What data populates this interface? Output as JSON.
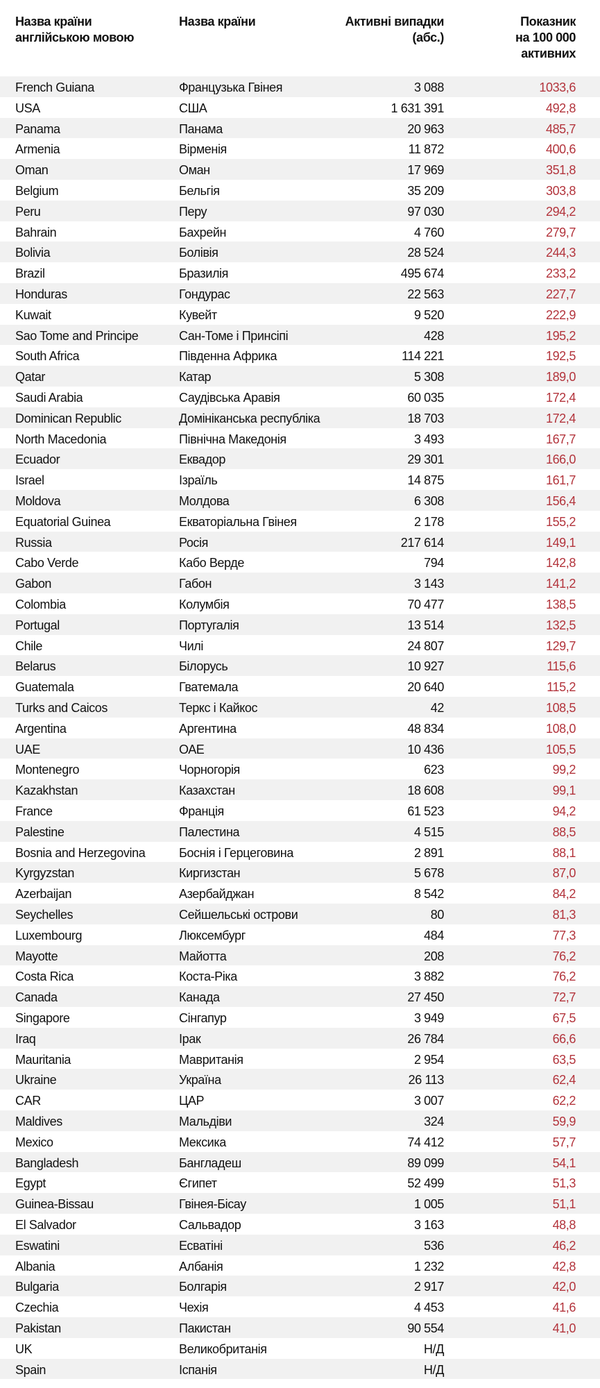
{
  "header": [
    [
      "Назва країни",
      "англійською мовою"
    ],
    [
      "Назва країни"
    ],
    [
      "Активні випадки",
      "(абс.)"
    ],
    [
      "Показник",
      "на 100 000",
      "активних"
    ]
  ],
  "table": {
    "rows": [
      [
        "French Guiana",
        "Французька Гвінея",
        "3 088",
        "1033,6"
      ],
      [
        "USA",
        "США",
        "1 631 391",
        "492,8"
      ],
      [
        "Panama",
        "Панама",
        "20 963",
        "485,7"
      ],
      [
        "Armenia",
        "Вірменія",
        "11 872",
        "400,6"
      ],
      [
        "Oman",
        "Оман",
        "17 969",
        "351,8"
      ],
      [
        "Belgium",
        "Бельгія",
        "35 209",
        "303,8"
      ],
      [
        "Peru",
        "Перу",
        "97 030",
        "294,2"
      ],
      [
        "Bahrain",
        "Бахрейн",
        "4 760",
        "279,7"
      ],
      [
        "Bolivia",
        "Болівія",
        "28 524",
        "244,3"
      ],
      [
        "Brazil",
        "Бразилія",
        "495 674",
        "233,2"
      ],
      [
        "Honduras",
        "Гондурас",
        "22 563",
        "227,7"
      ],
      [
        "Kuwait",
        "Кувейт",
        "9 520",
        "222,9"
      ],
      [
        "Sao Tome and Principe",
        "Сан-Томе і Принсіпі",
        "428",
        "195,2"
      ],
      [
        "South Africa",
        "Південна Африка",
        "114 221",
        "192,5"
      ],
      [
        "Qatar",
        "Катар",
        "5 308",
        "189,0"
      ],
      [
        "Saudi Arabia",
        "Саудівська Аравія",
        "60 035",
        "172,4"
      ],
      [
        "Dominican Republic",
        "Домініканська республіка",
        "18 703",
        "172,4"
      ],
      [
        "North Macedonia",
        "Північна Македонія",
        "3 493",
        "167,7"
      ],
      [
        "Ecuador",
        "Еквадор",
        "29 301",
        "166,0"
      ],
      [
        "Israel",
        "Ізраїль",
        "14 875",
        "161,7"
      ],
      [
        "Moldova",
        "Молдова",
        "6 308",
        "156,4"
      ],
      [
        "Equatorial Guinea",
        "Екваторіальна Гвінея",
        "2 178",
        "155,2"
      ],
      [
        "Russia",
        "Росія",
        "217 614",
        "149,1"
      ],
      [
        "Cabo Verde",
        "Кабо Верде",
        "794",
        "142,8"
      ],
      [
        "Gabon",
        "Габон",
        "3 143",
        "141,2"
      ],
      [
        "Colombia",
        "Колумбія",
        "70 477",
        "138,5"
      ],
      [
        "Portugal",
        "Португалія",
        "13 514",
        "132,5"
      ],
      [
        "Chile",
        "Чилі",
        "24 807",
        "129,7"
      ],
      [
        "Belarus",
        "Білорусь",
        "10 927",
        "115,6"
      ],
      [
        "Guatemala",
        "Гватемала",
        "20 640",
        "115,2"
      ],
      [
        "Turks and Caicos",
        "Теркс і Кайкос",
        "42",
        "108,5"
      ],
      [
        "Argentina",
        "Аргентина",
        "48 834",
        "108,0"
      ],
      [
        "UAE",
        "ОАЕ",
        "10 436",
        "105,5"
      ],
      [
        "Montenegro",
        "Чорногорія",
        "623",
        "99,2"
      ],
      [
        "Kazakhstan",
        "Казахстан",
        "18 608",
        "99,1"
      ],
      [
        "France",
        "Франція",
        "61 523",
        "94,2"
      ],
      [
        "Palestine",
        "Палестина",
        "4 515",
        "88,5"
      ],
      [
        "Bosnia and Herzegovina",
        "Боснія і Герцеговина",
        "2 891",
        "88,1"
      ],
      [
        "Kyrgyzstan",
        "Киргизстан",
        "5 678",
        "87,0"
      ],
      [
        "Azerbaijan",
        "Азербайджан",
        "8 542",
        "84,2"
      ],
      [
        "Seychelles",
        "Сейшельські острови",
        "80",
        "81,3"
      ],
      [
        "Luxembourg",
        "Люксембург",
        "484",
        "77,3"
      ],
      [
        "Mayotte",
        "Майотта",
        "208",
        "76,2"
      ],
      [
        "Costa Rica",
        "Коста-Ріка",
        "3 882",
        "76,2"
      ],
      [
        "Canada",
        "Канада",
        "27 450",
        "72,7"
      ],
      [
        "Singapore",
        "Сінгапур",
        "3 949",
        "67,5"
      ],
      [
        "Iraq",
        "Ірак",
        "26 784",
        "66,6"
      ],
      [
        "Mauritania",
        "Мавританія",
        "2 954",
        "63,5"
      ],
      [
        "Ukraine",
        "Україна",
        "26 113",
        "62,4"
      ],
      [
        "CAR",
        "ЦАР",
        "3 007",
        "62,2"
      ],
      [
        "Maldives",
        "Мальдіви",
        "324",
        "59,9"
      ],
      [
        "Mexico",
        "Мексика",
        "74 412",
        "57,7"
      ],
      [
        "Bangladesh",
        "Бангладеш",
        "89 099",
        "54,1"
      ],
      [
        "Egypt",
        "Єгипет",
        "52 499",
        "51,3"
      ],
      [
        "Guinea-Bissau",
        "Гвінея-Бісау",
        "1 005",
        "51,1"
      ],
      [
        "El Salvador",
        "Сальвадор",
        "3 163",
        "48,8"
      ],
      [
        "Eswatini",
        "Есватіні",
        "536",
        "46,2"
      ],
      [
        "Albania",
        "Албанія",
        "1 232",
        "42,8"
      ],
      [
        "Bulgaria",
        "Болгарія",
        "2 917",
        "42,0"
      ],
      [
        "Czechia",
        "Чехія",
        "4 453",
        "41,6"
      ],
      [
        "Pakistan",
        "Пакистан",
        "90 554",
        "41,0"
      ],
      [
        "UK",
        "Великобританія",
        "Н/Д"
      ],
      [
        "Spain",
        "Іспанія",
        "Н/Д"
      ]
    ]
  }
}
